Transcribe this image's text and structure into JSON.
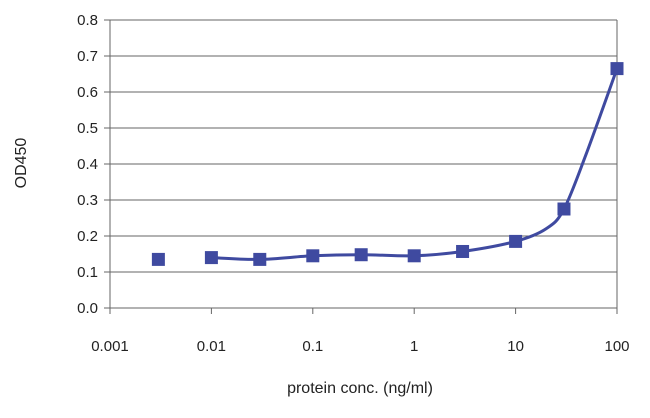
{
  "chart_data": {
    "type": "scatter",
    "title": "",
    "xlabel": "protein conc. (ng/ml)",
    "ylabel": "OD450",
    "x_scale": "log",
    "xlim": [
      0.001,
      100
    ],
    "ylim": [
      0,
      0.8
    ],
    "x_ticks": [
      0.001,
      0.01,
      0.1,
      1,
      10,
      100
    ],
    "x_tick_labels": [
      "0.001",
      "0.01",
      "0.1",
      "1",
      "10",
      "100"
    ],
    "y_ticks": [
      0,
      0.1,
      0.2,
      0.3,
      0.4,
      0.5,
      0.6,
      0.7,
      0.8
    ],
    "y_tick_labels": [
      "0.0",
      "0.1",
      "0.2",
      "0.3",
      "0.4",
      "0.5",
      "0.6",
      "0.7",
      "0.8"
    ],
    "grid": "horizontal",
    "legend": "none",
    "marker": "square",
    "color": "#3f4aa0",
    "series": [
      {
        "points": [
          {
            "x": 0.003,
            "y": 0.135
          },
          {
            "x": 0.01,
            "y": 0.14
          },
          {
            "x": 0.03,
            "y": 0.135
          },
          {
            "x": 0.1,
            "y": 0.145
          },
          {
            "x": 0.3,
            "y": 0.148
          },
          {
            "x": 1,
            "y": 0.145
          },
          {
            "x": 3,
            "y": 0.157
          },
          {
            "x": 10,
            "y": 0.185
          },
          {
            "x": 30,
            "y": 0.275
          },
          {
            "x": 100,
            "y": 0.665
          }
        ],
        "fit_curve": [
          {
            "x": 0.01,
            "y": 0.14
          },
          {
            "x": 0.03,
            "y": 0.135
          },
          {
            "x": 0.1,
            "y": 0.145
          },
          {
            "x": 0.3,
            "y": 0.148
          },
          {
            "x": 1,
            "y": 0.145
          },
          {
            "x": 3,
            "y": 0.157
          },
          {
            "x": 10,
            "y": 0.185
          },
          {
            "x": 20,
            "y": 0.22
          },
          {
            "x": 30,
            "y": 0.275
          },
          {
            "x": 50,
            "y": 0.43
          },
          {
            "x": 100,
            "y": 0.665
          }
        ]
      }
    ]
  }
}
